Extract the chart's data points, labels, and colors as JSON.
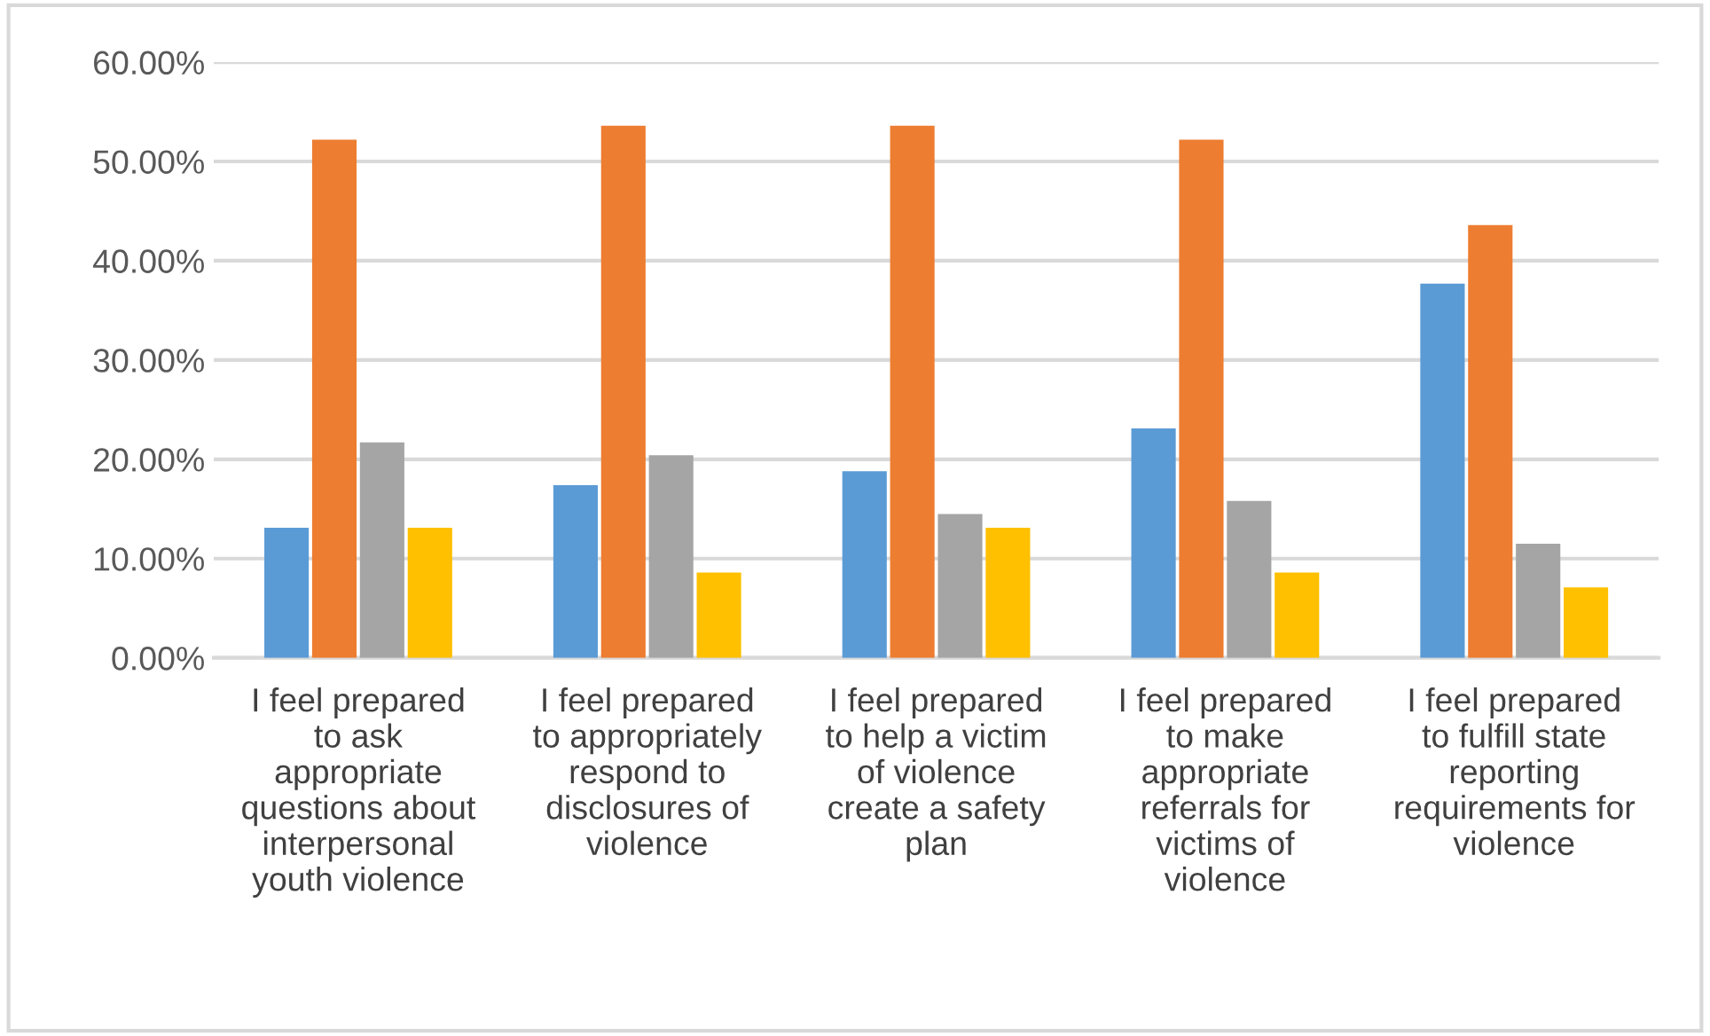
{
  "chart_data": {
    "type": "bar",
    "categories": [
      "I feel prepared to ask appropriate questions about interpersonal youth violence",
      "I feel prepared to appropriately respond to disclosures of violence",
      "I feel prepared to help a victim of violence create a safety plan",
      "I feel prepared to make appropriate referrals for victims of violence",
      "I feel prepared to fulfill state reporting requirements for violence"
    ],
    "series": [
      {
        "color": "#5b9bd5",
        "values": [
          13.1,
          17.4,
          18.8,
          23.1,
          37.7
        ]
      },
      {
        "color": "#ed7d31",
        "values": [
          52.2,
          53.6,
          53.6,
          52.2,
          43.6
        ]
      },
      {
        "color": "#a5a5a5",
        "values": [
          21.7,
          20.4,
          14.5,
          15.8,
          11.5
        ]
      },
      {
        "color": "#ffc000",
        "values": [
          13.1,
          8.6,
          13.1,
          8.6,
          7.1
        ]
      }
    ],
    "ylim": [
      0,
      60
    ],
    "yticks": [
      {
        "value": 0,
        "label": "0.00%"
      },
      {
        "value": 10,
        "label": "10.00%"
      },
      {
        "value": 20,
        "label": "20.00%"
      },
      {
        "value": 30,
        "label": "30.00%"
      },
      {
        "value": 40,
        "label": "40.00%"
      },
      {
        "value": 50,
        "label": "50.00%"
      },
      {
        "value": 60,
        "label": "60.00%"
      }
    ],
    "grid": "y",
    "legend": false
  }
}
